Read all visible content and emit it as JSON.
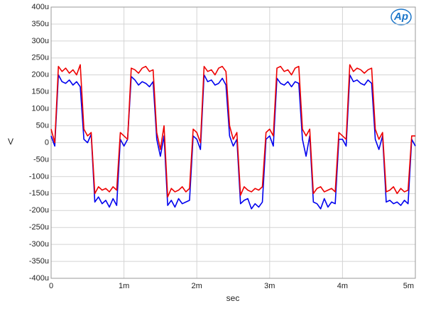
{
  "chart_data": {
    "type": "line",
    "logo": "Ap",
    "ylabel": "V",
    "xlabel": "sec",
    "grid": true,
    "xlim": [
      0,
      0.005
    ],
    "ylim": [
      -0.0004,
      0.0004
    ],
    "xticks": [
      {
        "value": 0,
        "label": "0"
      },
      {
        "value": 0.001,
        "label": "1m"
      },
      {
        "value": 0.002,
        "label": "2m"
      },
      {
        "value": 0.003,
        "label": "3m"
      },
      {
        "value": 0.004,
        "label": "4m"
      },
      {
        "value": 0.005,
        "label": "5m"
      }
    ],
    "yticks": [
      {
        "value": 0.0004,
        "label": "400u"
      },
      {
        "value": 0.00035,
        "label": "350u"
      },
      {
        "value": 0.0003,
        "label": "300u"
      },
      {
        "value": 0.00025,
        "label": "250u"
      },
      {
        "value": 0.0002,
        "label": "200u"
      },
      {
        "value": 0.00015,
        "label": "150u"
      },
      {
        "value": 0.0001,
        "label": "100u"
      },
      {
        "value": 5e-05,
        "label": "50u"
      },
      {
        "value": 0,
        "label": "0"
      },
      {
        "value": -5e-05,
        "label": "-50u"
      },
      {
        "value": -0.0001,
        "label": "-100u"
      },
      {
        "value": -0.00015,
        "label": "-150u"
      },
      {
        "value": -0.0002,
        "label": "-200u"
      },
      {
        "value": -0.00025,
        "label": "-250u"
      },
      {
        "value": -0.0003,
        "label": "-300u"
      },
      {
        "value": -0.00035,
        "label": "-350u"
      },
      {
        "value": -0.0004,
        "label": "-400u"
      }
    ],
    "x": [
      0,
      5e-05,
      0.0001,
      0.00015,
      0.0002,
      0.00025,
      0.0003,
      0.00035,
      0.0004,
      0.00045,
      0.0005,
      0.00055,
      0.0006,
      0.00065,
      0.0007,
      0.00075,
      0.0008,
      0.00085,
      0.0009,
      0.00095,
      0.001,
      0.00105,
      0.0011,
      0.00115,
      0.0012,
      0.00125,
      0.0013,
      0.00135,
      0.0014,
      0.00145,
      0.0015,
      0.00155,
      0.0016,
      0.00165,
      0.0017,
      0.00175,
      0.0018,
      0.00185,
      0.0019,
      0.00195,
      0.002,
      0.00205,
      0.0021,
      0.00215,
      0.0022,
      0.00225,
      0.0023,
      0.00235,
      0.0024,
      0.00245,
      0.0025,
      0.00255,
      0.0026,
      0.00265,
      0.0027,
      0.00275,
      0.0028,
      0.00285,
      0.0029,
      0.00295,
      0.003,
      0.00305,
      0.0031,
      0.00315,
      0.0032,
      0.00325,
      0.0033,
      0.00335,
      0.0034,
      0.00345,
      0.0035,
      0.00355,
      0.0036,
      0.00365,
      0.0037,
      0.00375,
      0.0038,
      0.00385,
      0.0039,
      0.00395,
      0.004,
      0.00405,
      0.0041,
      0.00415,
      0.0042,
      0.00425,
      0.0043,
      0.00435,
      0.0044,
      0.00445,
      0.0045,
      0.00455,
      0.0046,
      0.00465,
      0.0047,
      0.00475,
      0.0048,
      0.00485,
      0.0049,
      0.00495,
      0.005
    ],
    "series": [
      {
        "color": "#0000ee",
        "values": [
          2e-05,
          -1e-05,
          0.0002,
          0.00018,
          0.000175,
          0.000185,
          0.00017,
          0.00018,
          0.000165,
          1e-05,
          0,
          2.5e-05,
          -0.000175,
          -0.00016,
          -0.00018,
          -0.00017,
          -0.00019,
          -0.000165,
          -0.000185,
          1e-05,
          -1e-05,
          1e-05,
          0.000195,
          0.000185,
          0.00017,
          0.00018,
          0.000175,
          0.000165,
          0.00018,
          1e-05,
          -4e-05,
          2e-05,
          -0.000185,
          -0.00017,
          -0.00019,
          -0.000165,
          -0.00018,
          -0.000175,
          -0.00017,
          2e-05,
          1e-05,
          -2e-05,
          0.0002,
          0.00018,
          0.000185,
          0.00017,
          0.000175,
          0.00019,
          0.00017,
          2e-05,
          -1e-05,
          1e-05,
          -0.00018,
          -0.00017,
          -0.000165,
          -0.000195,
          -0.00018,
          -0.00019,
          -0.000175,
          1e-05,
          2e-05,
          -1e-05,
          0.00019,
          0.000175,
          0.00017,
          0.00018,
          0.000165,
          0.00018,
          0.000175,
          1e-05,
          -4e-05,
          2e-05,
          -0.000175,
          -0.00018,
          -0.000195,
          -0.000165,
          -0.00019,
          -0.000175,
          -0.00018,
          1e-05,
          1e-05,
          -1e-05,
          0.0002,
          0.00018,
          0.000185,
          0.000175,
          0.00017,
          0.000185,
          0.000175,
          1e-05,
          -2e-05,
          2e-05,
          -0.000175,
          -0.00017,
          -0.00018,
          -0.000175,
          -0.000185,
          -0.00017,
          -0.00018,
          1e-05,
          -1e-05
        ]
      },
      {
        "color": "#ee0000",
        "values": [
          4e-05,
          0,
          0.000225,
          0.00021,
          0.00022,
          0.000205,
          0.000215,
          0.0002,
          0.00023,
          4e-05,
          2e-05,
          3e-05,
          -0.00015,
          -0.00013,
          -0.00014,
          -0.000135,
          -0.000145,
          -0.00013,
          -0.00014,
          3e-05,
          2e-05,
          1e-05,
          0.00022,
          0.000215,
          0.000205,
          0.00022,
          0.000225,
          0.00021,
          0.000215,
          3e-05,
          -2e-05,
          5e-05,
          -0.00016,
          -0.000135,
          -0.000145,
          -0.00014,
          -0.00013,
          -0.000145,
          -0.000135,
          4e-05,
          3e-05,
          0,
          0.000225,
          0.00021,
          0.000215,
          0.0002,
          0.00022,
          0.000225,
          0.00021,
          5e-05,
          1e-05,
          3e-05,
          -0.000155,
          -0.00013,
          -0.00014,
          -0.000145,
          -0.000135,
          -0.00014,
          -0.00013,
          3e-05,
          4e-05,
          2e-05,
          0.00022,
          0.000225,
          0.00021,
          0.000215,
          0.0002,
          0.00022,
          0.000225,
          4e-05,
          2e-05,
          4e-05,
          -0.00015,
          -0.000135,
          -0.00013,
          -0.000145,
          -0.00014,
          -0.000135,
          -0.000145,
          3e-05,
          2e-05,
          1e-05,
          0.00023,
          0.00021,
          0.00022,
          0.000215,
          0.000205,
          0.000215,
          0.00022,
          4e-05,
          1e-05,
          3e-05,
          -0.000145,
          -0.00014,
          -0.00013,
          -0.00015,
          -0.000135,
          -0.000145,
          -0.00014,
          2e-05,
          2e-05
        ]
      }
    ]
  }
}
